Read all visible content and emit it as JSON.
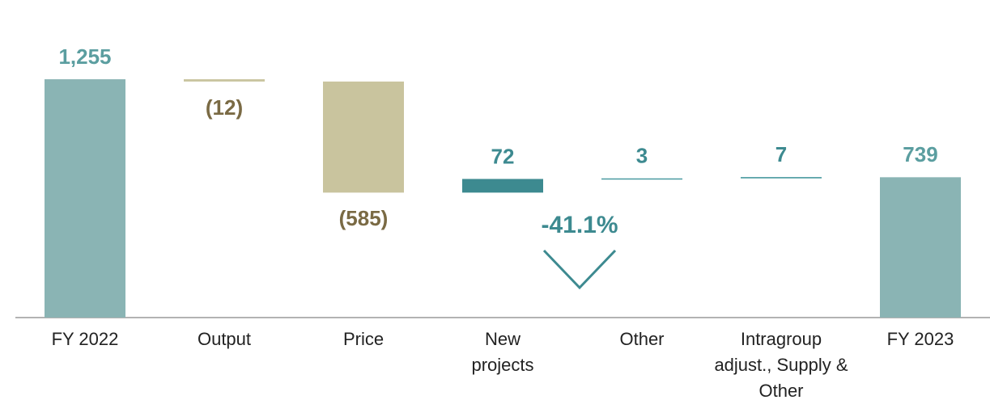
{
  "chart_data": {
    "type": "waterfall",
    "categories": [
      "FY 2022",
      "Output",
      "Price",
      "New projects",
      "Other",
      "Intragroup adjust., Supply & Other",
      "FY 2023"
    ],
    "values": [
      1255,
      -12,
      -585,
      72,
      3,
      7,
      739
    ],
    "value_labels": [
      "1,255",
      "(12)",
      "(585)",
      "72",
      "3",
      "7",
      "739"
    ],
    "is_total": [
      true,
      false,
      false,
      false,
      false,
      false,
      true
    ],
    "colors": [
      "#8ab4b4",
      "#c9c49e",
      "#c9c49e",
      "#3d8a90",
      "#4a9aa0",
      "#4a9aa0",
      "#8ab4b4"
    ],
    "label_colors": [
      "#5b9ea0",
      "#7a6a44",
      "#7a6a44",
      "#3d8a90",
      "#3d8a90",
      "#3d8a90",
      "#5b9ea0"
    ],
    "annotation": "-41.1%",
    "ylim": [
      0,
      1400
    ]
  }
}
